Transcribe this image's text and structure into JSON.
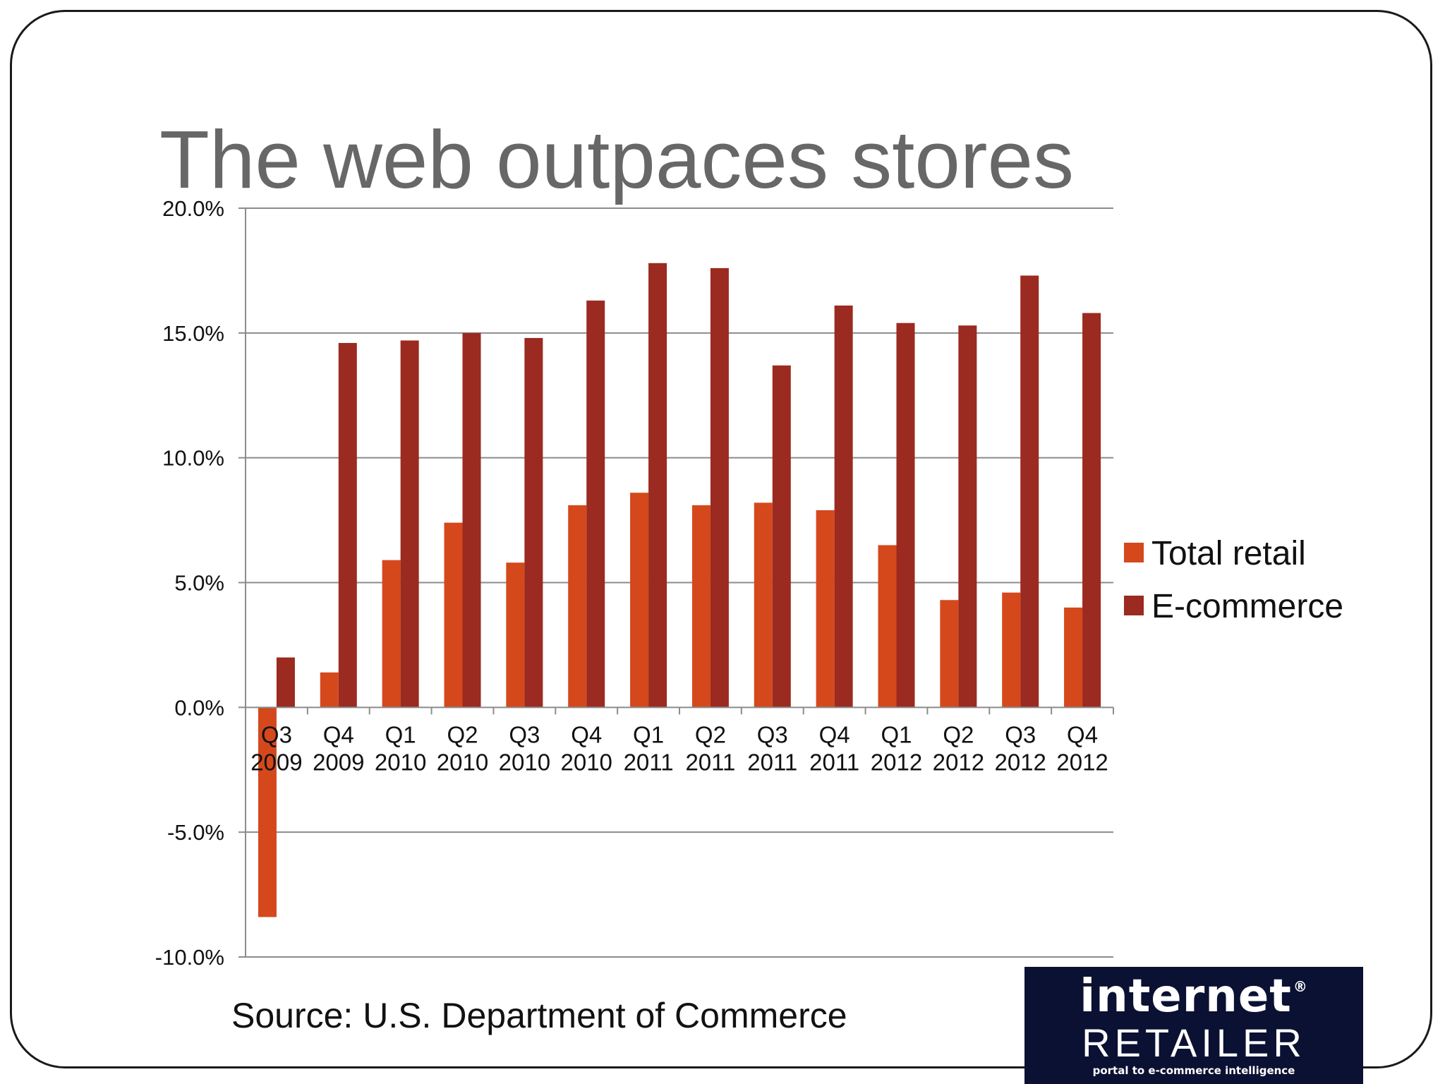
{
  "slide": {
    "title": "The web outpaces stores",
    "source": "Source: U.S. Department of Commerce"
  },
  "logo": {
    "line1": "internet",
    "mark": "®",
    "line2": "RETAILER",
    "tagline": "portal to e-commerce intelligence"
  },
  "colors": {
    "total_retail": "#d4481c",
    "ecommerce": "#9b2a20",
    "grid": "#8c8c8c",
    "axis": "#8c8c8c",
    "logo_bg": "#0b1133"
  },
  "chart_data": {
    "type": "bar",
    "title": "The web outpaces stores",
    "categories": [
      [
        "Q3",
        "2009"
      ],
      [
        "Q4",
        "2009"
      ],
      [
        "Q1",
        "2010"
      ],
      [
        "Q2",
        "2010"
      ],
      [
        "Q3",
        "2010"
      ],
      [
        "Q4",
        "2010"
      ],
      [
        "Q1",
        "2011"
      ],
      [
        "Q2",
        "2011"
      ],
      [
        "Q3",
        "2011"
      ],
      [
        "Q4",
        "2011"
      ],
      [
        "Q1",
        "2012"
      ],
      [
        "Q2",
        "2012"
      ],
      [
        "Q3",
        "2012"
      ],
      [
        "Q4",
        "2012"
      ]
    ],
    "series": [
      {
        "name": "Total retail",
        "color": "#d4481c",
        "values": [
          -8.4,
          1.4,
          5.9,
          7.4,
          5.8,
          8.1,
          8.6,
          8.1,
          8.2,
          7.9,
          6.5,
          4.3,
          4.6,
          4.0
        ]
      },
      {
        "name": "E-commerce",
        "color": "#9b2a20",
        "values": [
          2.0,
          14.6,
          14.7,
          15.0,
          14.8,
          16.3,
          17.8,
          17.6,
          13.7,
          16.1,
          15.4,
          15.3,
          17.3,
          15.8
        ]
      }
    ],
    "ylim": [
      -10,
      20
    ],
    "yticks": [
      20,
      15,
      10,
      5,
      0,
      -5,
      -10
    ],
    "ytick_labels": [
      "20.0%",
      "15.0%",
      "10.0%",
      "5.0%",
      "0.0%",
      "-5.0%",
      "-10.0%"
    ],
    "xlabel": "",
    "ylabel": "",
    "grid": true,
    "legend_position": "right"
  }
}
